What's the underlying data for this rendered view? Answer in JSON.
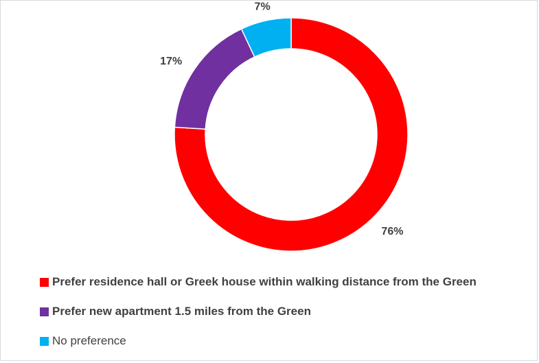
{
  "chart_data": {
    "type": "pie",
    "subtype": "donut",
    "categories": [
      "Prefer residence hall or Greek house within walking distance from the Green",
      "Prefer new apartment 1.5 miles from the Green",
      "No preference"
    ],
    "values": [
      76,
      17,
      7
    ],
    "value_labels": [
      "76%",
      "17%",
      "7%"
    ],
    "colors": [
      "#ff0000",
      "#7030a0",
      "#00b0f0"
    ],
    "legend_position": "bottom-left",
    "title": ""
  }
}
